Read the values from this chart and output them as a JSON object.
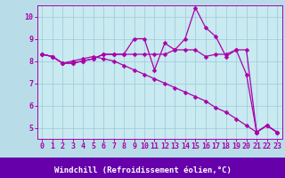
{
  "background_color": "#b8dde8",
  "plot_bg": "#c8eaf0",
  "label_bg": "#6600aa",
  "line_color": "#aa00aa",
  "marker": "D",
  "markersize": 2.5,
  "linewidth": 0.9,
  "xlabel": "Windchill (Refroidissement éolien,°C)",
  "xlabel_fontsize": 6.5,
  "tick_fontsize": 6,
  "xlim": [
    -0.5,
    23.5
  ],
  "ylim": [
    4.5,
    10.5
  ],
  "yticks": [
    5,
    6,
    7,
    8,
    9,
    10
  ],
  "xticks": [
    0,
    1,
    2,
    3,
    4,
    5,
    6,
    7,
    8,
    9,
    10,
    11,
    12,
    13,
    14,
    15,
    16,
    17,
    18,
    19,
    20,
    21,
    22,
    23
  ],
  "series": [
    [
      8.3,
      8.2,
      7.9,
      7.9,
      8.0,
      8.1,
      8.3,
      8.3,
      8.3,
      8.3,
      8.3,
      8.3,
      8.3,
      8.5,
      8.5,
      8.5,
      8.2,
      8.3,
      8.3,
      8.5,
      8.5,
      4.8,
      5.1,
      4.8
    ],
    [
      8.3,
      8.2,
      7.9,
      7.9,
      8.0,
      8.1,
      8.3,
      8.3,
      8.3,
      9.0,
      9.0,
      7.6,
      8.8,
      8.5,
      9.0,
      10.4,
      9.5,
      9.1,
      8.2,
      8.5,
      7.4,
      4.8,
      5.1,
      4.8
    ],
    [
      8.3,
      8.2,
      7.9,
      8.0,
      8.1,
      8.2,
      8.1,
      8.0,
      7.8,
      7.6,
      7.4,
      7.2,
      7.0,
      6.8,
      6.6,
      6.4,
      6.2,
      5.9,
      5.7,
      5.4,
      5.1,
      4.8,
      5.1,
      4.8
    ]
  ]
}
